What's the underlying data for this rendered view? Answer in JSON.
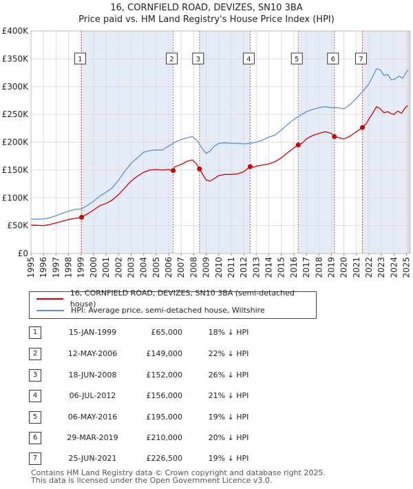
{
  "title_line1": "16, CORNFIELD ROAD, DEVIZES, SN10 3BA",
  "title_line2": "Price paid vs. HM Land Registry's House Price Index (HPI)",
  "legend": {
    "property": "16, CORNFIELD ROAD, DEVIZES, SN10 3BA (semi-detached house)",
    "hpi": "HPI: Average price, semi-detached house, Wiltshire"
  },
  "colors": {
    "property": "#cc0000",
    "hpi": "#5b8fd0",
    "shade": "#e6ecf7",
    "vline": "#dd5555",
    "grid": "#dddddd"
  },
  "transactions": [
    {
      "num": "1",
      "date": "15-JAN-1999",
      "price": "£65,000",
      "hpi": "18% ↓ HPI",
      "t": 1999.04,
      "value": 65000
    },
    {
      "num": "2",
      "date": "12-MAY-2006",
      "price": "£149,000",
      "hpi": "22% ↓ HPI",
      "t": 2006.36,
      "value": 149000
    },
    {
      "num": "3",
      "date": "18-JUN-2008",
      "price": "£152,000",
      "hpi": "26% ↓ HPI",
      "t": 2008.46,
      "value": 152000
    },
    {
      "num": "4",
      "date": "06-JUL-2012",
      "price": "£156,000",
      "hpi": "21% ↓ HPI",
      "t": 2012.51,
      "value": 156000
    },
    {
      "num": "5",
      "date": "06-MAY-2016",
      "price": "£195,000",
      "hpi": "19% ↓ HPI",
      "t": 2016.35,
      "value": 195000
    },
    {
      "num": "6",
      "date": "29-MAR-2019",
      "price": "£210,000",
      "hpi": "20% ↓ HPI",
      "t": 2019.24,
      "value": 210000
    },
    {
      "num": "7",
      "date": "25-JUN-2021",
      "price": "£226,500",
      "hpi": "19% ↓ HPI",
      "t": 2021.48,
      "value": 226500
    }
  ],
  "footer_line1": "Contains HM Land Registry data © Crown copyright and database right 2025.",
  "footer_line2": "This data is licensed under the Open Government Licence v3.0.",
  "chart_data": {
    "type": "line",
    "title": "16, CORNFIELD ROAD, DEVIZES, SN10 3BA — Price paid vs. HM Land Registry's House Price Index (HPI)",
    "xlabel": "",
    "ylabel": "",
    "xlim": [
      1995,
      2025.3
    ],
    "ylim": [
      0,
      400000
    ],
    "x_ticks": [
      "1995",
      "1996",
      "1997",
      "1998",
      "1999",
      "2000",
      "2001",
      "2002",
      "2003",
      "2004",
      "2005",
      "2006",
      "2007",
      "2008",
      "2009",
      "2010",
      "2011",
      "2012",
      "2013",
      "2014",
      "2015",
      "2016",
      "2017",
      "2018",
      "2019",
      "2020",
      "2021",
      "2022",
      "2023",
      "2024",
      "2025"
    ],
    "y_ticks": [
      {
        "value": 0,
        "label": "£0"
      },
      {
        "value": 50000,
        "label": "£50K"
      },
      {
        "value": 100000,
        "label": "£100K"
      },
      {
        "value": 150000,
        "label": "£150K"
      },
      {
        "value": 200000,
        "label": "£200K"
      },
      {
        "value": 250000,
        "label": "£250K"
      },
      {
        "value": 300000,
        "label": "£300K"
      },
      {
        "value": 350000,
        "label": "£350K"
      },
      {
        "value": 400000,
        "label": "£400K"
      }
    ],
    "grid": true,
    "legend_position": "below",
    "series": [
      {
        "name": "16, CORNFIELD ROAD, DEVIZES, SN10 3BA (semi-detached house)",
        "x": [
          1995,
          1995.5,
          1996,
          1996.5,
          1997,
          1997.5,
          1998,
          1998.5,
          1999.04,
          1999.5,
          2000,
          2000.5,
          2001,
          2001.5,
          2002,
          2002.5,
          2003,
          2003.5,
          2004,
          2004.5,
          2005,
          2005.5,
          2006,
          2006.36,
          2006.5,
          2007,
          2007.5,
          2007.9,
          2008.2,
          2008.46,
          2008.7,
          2009,
          2009.3,
          2009.6,
          2010,
          2010.5,
          2011,
          2011.5,
          2012,
          2012.51,
          2012.8,
          2013,
          2013.5,
          2014,
          2014.5,
          2015,
          2015.5,
          2016,
          2016.35,
          2016.7,
          2017,
          2017.5,
          2018,
          2018.5,
          2019,
          2019.24,
          2019.6,
          2020,
          2020.5,
          2021,
          2021.48,
          2021.8,
          2022,
          2022.3,
          2022.6,
          2022.9,
          2023.2,
          2023.5,
          2023.8,
          2024,
          2024.3,
          2024.6,
          2024.9,
          2025.1
        ],
        "values": [
          51000,
          50500,
          50000,
          52000,
          55000,
          58000,
          61000,
          63000,
          65000,
          71000,
          78000,
          86000,
          90000,
          96000,
          106000,
          118000,
          130000,
          139000,
          146000,
          150000,
          151000,
          150000,
          151000,
          149000,
          156000,
          160000,
          166000,
          168000,
          162000,
          152000,
          143000,
          132000,
          130000,
          134000,
          140000,
          142000,
          142000,
          143000,
          147000,
          156000,
          155000,
          157000,
          159000,
          161000,
          165000,
          172000,
          181000,
          190000,
          195000,
          199000,
          206000,
          212000,
          216000,
          219000,
          216000,
          210000,
          208000,
          206000,
          211000,
          219000,
          226500,
          234000,
          242000,
          252000,
          264000,
          260000,
          253000,
          255000,
          251000,
          250000,
          256000,
          252000,
          262000,
          266000
        ]
      },
      {
        "name": "HPI: Average price, semi-detached house, Wiltshire",
        "x": [
          1995,
          1995.5,
          1996,
          1996.5,
          1997,
          1997.5,
          1998,
          1998.5,
          1999,
          1999.5,
          2000,
          2000.5,
          2001,
          2001.5,
          2002,
          2002.5,
          2003,
          2003.5,
          2004,
          2004.5,
          2005,
          2005.5,
          2006,
          2006.5,
          2007,
          2007.5,
          2007.9,
          2008.3,
          2008.7,
          2009,
          2009.3,
          2009.6,
          2010,
          2010.5,
          2011,
          2011.5,
          2012,
          2012.5,
          2013,
          2013.5,
          2014,
          2014.5,
          2015,
          2015.5,
          2016,
          2016.5,
          2017,
          2017.5,
          2018,
          2018.5,
          2019,
          2019.5,
          2020,
          2020.5,
          2021,
          2021.5,
          2022,
          2022.3,
          2022.6,
          2022.9,
          2023.2,
          2023.5,
          2023.8,
          2024.1,
          2024.4,
          2024.7,
          2025.1
        ],
        "values": [
          62000,
          61500,
          62000,
          64000,
          68000,
          72000,
          76000,
          79000,
          80000,
          86000,
          94000,
          103000,
          110000,
          118000,
          132000,
          148000,
          162000,
          172000,
          182000,
          185000,
          186000,
          186000,
          193000,
          200000,
          205000,
          208000,
          210000,
          202000,
          188000,
          180000,
          184000,
          192000,
          198000,
          199000,
          198000,
          198000,
          197000,
          198000,
          200000,
          204000,
          209000,
          213000,
          222000,
          232000,
          241000,
          248000,
          255000,
          259000,
          262000,
          264000,
          262000,
          262000,
          260000,
          268000,
          279000,
          291000,
          305000,
          318000,
          332000,
          330000,
          320000,
          322000,
          312000,
          314000,
          319000,
          315000,
          330000
        ]
      }
    ]
  }
}
